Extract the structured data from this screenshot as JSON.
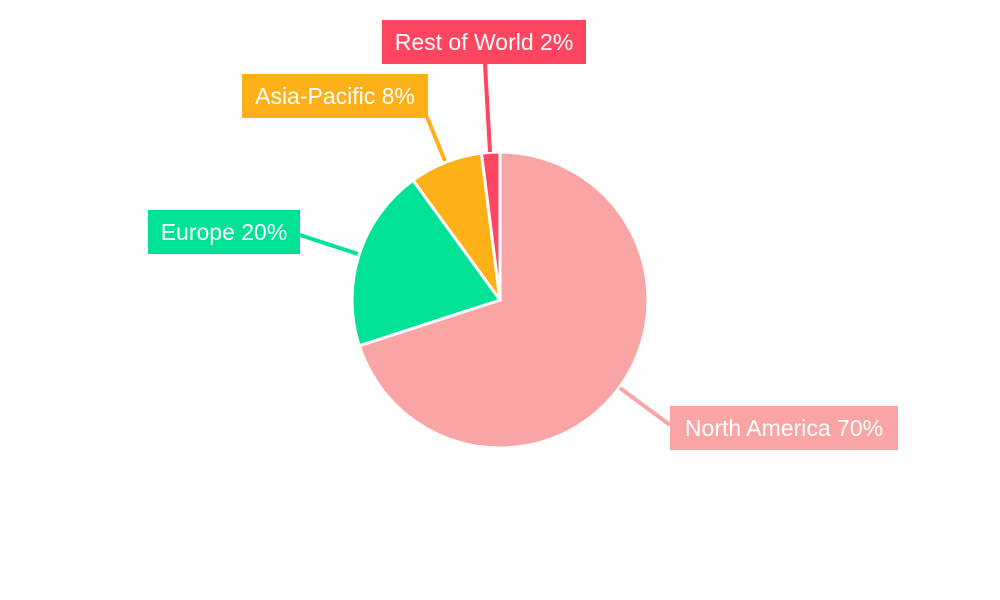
{
  "chart_data": {
    "type": "pie",
    "title": "",
    "categories": [
      "North America",
      "Europe",
      "Asia-Pacific",
      "Rest of World"
    ],
    "values": [
      70,
      20,
      8,
      2
    ],
    "labels": [
      "North America 70%",
      "Europe 20%",
      "Asia-Pacific 8%",
      "Rest of World 2%"
    ],
    "colors": [
      "#F9A5A5",
      "#00E396",
      "#FEB019",
      "#FF4560"
    ],
    "start_angle": "top, clockwise",
    "legend": "none"
  }
}
